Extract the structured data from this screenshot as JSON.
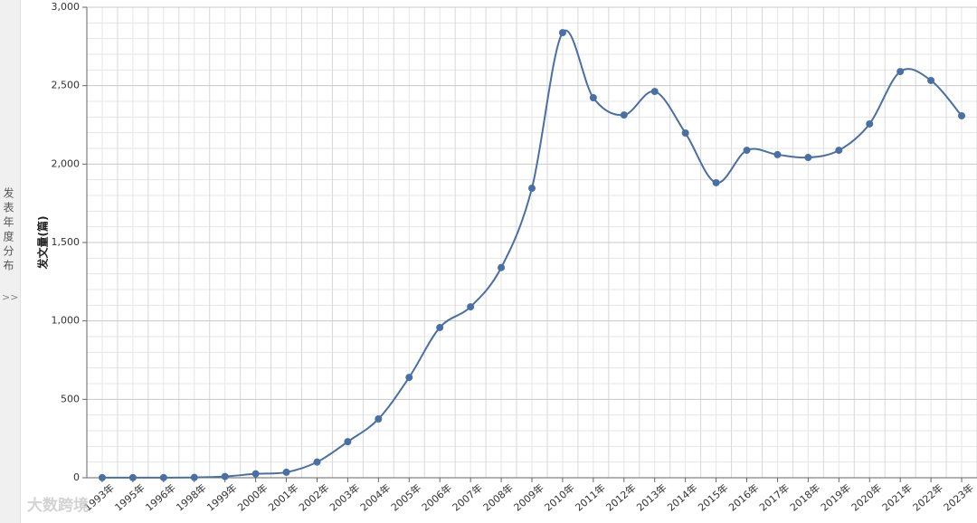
{
  "sidebar": {
    "label": "发表年度分布",
    "toggle": ">>"
  },
  "watermark": "大数跨境",
  "chart_data": {
    "type": "line",
    "y_label": "发文量(篇)",
    "categories": [
      "1993年",
      "1995年",
      "1996年",
      "1998年",
      "1999年",
      "2000年",
      "2001年",
      "2002年",
      "2003年",
      "2004年",
      "2005年",
      "2006年",
      "2007年",
      "2008年",
      "2009年",
      "2010年",
      "2011年",
      "2012年",
      "2013年",
      "2014年",
      "2015年",
      "2016年",
      "2017年",
      "2018年",
      "2019年",
      "2020年",
      "2021年",
      "2022年",
      "2023年"
    ],
    "values": [
      1,
      1,
      1,
      2,
      8,
      25,
      35,
      100,
      230,
      375,
      640,
      958,
      1090,
      1340,
      1846,
      2838,
      2423,
      2313,
      2463,
      2198,
      1881,
      2088,
      2060,
      2042,
      2088,
      2256,
      2590,
      2533,
      2308
    ],
    "color": "#4a6fa5",
    "ylim": [
      0,
      3000
    ],
    "yticks": [
      {
        "value": 0,
        "label": "0"
      },
      {
        "value": 500,
        "label": "500"
      },
      {
        "value": 1000,
        "label": "1,000"
      },
      {
        "value": 1500,
        "label": "1,500"
      },
      {
        "value": 2000,
        "label": "2,000"
      },
      {
        "value": 2500,
        "label": "2,500"
      },
      {
        "value": 3000,
        "label": "3,000"
      }
    ],
    "minor_yticks": [
      100,
      200,
      300,
      400,
      600,
      700,
      800,
      900,
      1100,
      1200,
      1300,
      1400,
      1600,
      1700,
      1800,
      1900,
      2100,
      2200,
      2300,
      2400,
      2600,
      2700,
      2800,
      2900
    ],
    "grid": true
  }
}
